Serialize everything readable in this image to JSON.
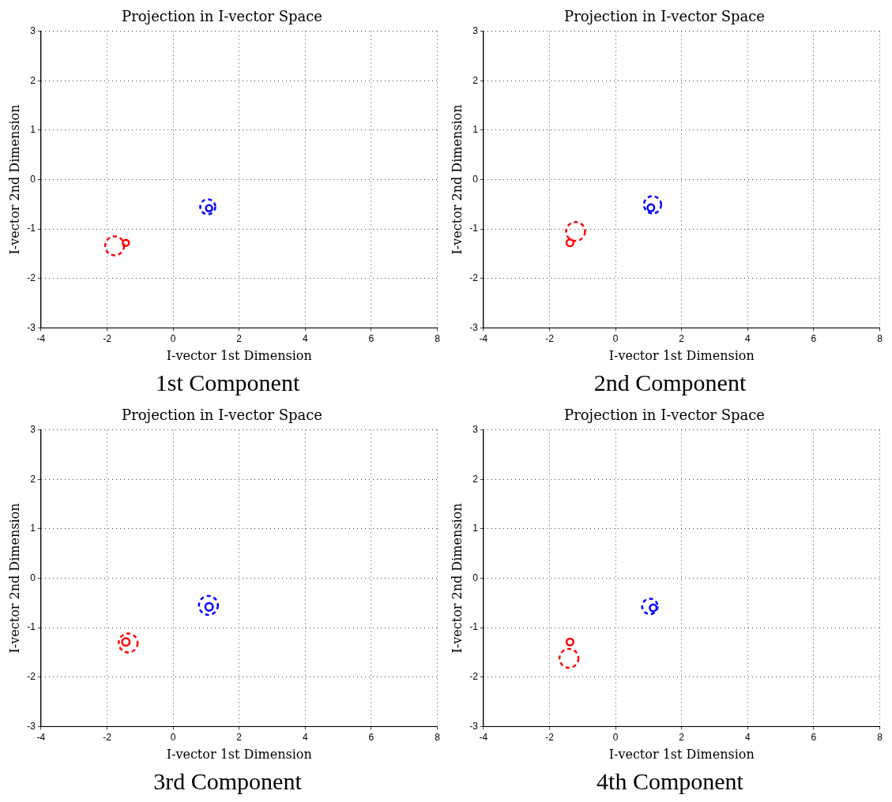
{
  "chart_data": [
    {
      "type": "bubble",
      "title": "Projection in I-vector Space",
      "xlabel": "I-vector 1st Dimension",
      "ylabel": "I-vector 2nd Dimension",
      "annotations": [
        "1st Component"
      ],
      "xlim": [
        -4,
        8
      ],
      "ylim": [
        -3,
        3
      ],
      "xticks": [
        -4,
        -2,
        0,
        2,
        4,
        6,
        8
      ],
      "yticks": [
        -3,
        -2,
        -1,
        0,
        1,
        2,
        3
      ],
      "grid": true,
      "series": [
        {
          "color": "#0000ff",
          "line_style": "solid",
          "x": [
            1.09
          ],
          "values": [
            -0.58
          ],
          "sizes": [
            0.11
          ]
        },
        {
          "color": "#0000ff",
          "line_style": "dashed",
          "x": [
            1.05
          ],
          "values": [
            -0.55
          ],
          "sizes": [
            0.63
          ]
        },
        {
          "color": "#ff0000",
          "line_style": "solid",
          "x": [
            -1.43
          ],
          "values": [
            -1.28
          ],
          "sizes": [
            0.11
          ]
        },
        {
          "color": "#ff0000",
          "line_style": "dashed",
          "x": [
            -1.77
          ],
          "values": [
            -1.34
          ],
          "sizes": [
            1
          ]
        }
      ]
    },
    {
      "type": "bubble",
      "title": "Projection in I-vector Space",
      "xlabel": "I-vector 1st Dimension",
      "ylabel": "I-vector 2nd Dimension",
      "annotations": [
        "2nd Component"
      ],
      "xlim": [
        -4,
        8
      ],
      "ylim": [
        -3,
        3
      ],
      "xticks": [
        -4,
        -2,
        0,
        2,
        4,
        6,
        8
      ],
      "yticks": [
        -3,
        -2,
        -1,
        0,
        1,
        2,
        3
      ],
      "grid": true,
      "series": [
        {
          "color": "#0000ff",
          "line_style": "solid",
          "x": [
            1.07
          ],
          "values": [
            -0.57
          ],
          "sizes": [
            0.13
          ]
        },
        {
          "color": "#0000ff",
          "line_style": "dashed",
          "x": [
            1.12
          ],
          "values": [
            -0.51
          ],
          "sizes": [
            0.83
          ]
        },
        {
          "color": "#ff0000",
          "line_style": "solid",
          "x": [
            -1.38
          ],
          "values": [
            -1.28
          ],
          "sizes": [
            0.13
          ]
        },
        {
          "color": "#ff0000",
          "line_style": "dashed",
          "x": [
            -1.21
          ],
          "values": [
            -1.05
          ],
          "sizes": [
            1
          ]
        }
      ]
    },
    {
      "type": "bubble",
      "title": "Projection in I-vector Space",
      "xlabel": "I-vector 1st Dimension",
      "ylabel": "I-vector 2nd Dimension",
      "annotations": [
        "3rd Component"
      ],
      "xlim": [
        -4,
        8
      ],
      "ylim": [
        -3,
        3
      ],
      "xticks": [
        -4,
        -2,
        0,
        2,
        4,
        6,
        8
      ],
      "yticks": [
        -3,
        -2,
        -1,
        0,
        1,
        2,
        3
      ],
      "grid": true,
      "series": [
        {
          "color": "#0000ff",
          "line_style": "solid",
          "x": [
            1.09
          ],
          "values": [
            -0.58
          ],
          "sizes": [
            0.16
          ]
        },
        {
          "color": "#0000ff",
          "line_style": "dashed",
          "x": [
            1.07
          ],
          "values": [
            -0.55
          ],
          "sizes": [
            1
          ]
        },
        {
          "color": "#ff0000",
          "line_style": "solid",
          "x": [
            -1.43
          ],
          "values": [
            -1.29
          ],
          "sizes": [
            0.16
          ]
        },
        {
          "color": "#ff0000",
          "line_style": "dashed",
          "x": [
            -1.36
          ],
          "values": [
            -1.31
          ],
          "sizes": [
            1
          ]
        }
      ]
    },
    {
      "type": "bubble",
      "title": "Projection in I-vector Space",
      "xlabel": "I-vector 1st Dimension",
      "ylabel": "I-vector 2nd Dimension",
      "annotations": [
        "4th Component"
      ],
      "xlim": [
        -4,
        8
      ],
      "ylim": [
        -3,
        3
      ],
      "xticks": [
        -4,
        -2,
        0,
        2,
        4,
        6,
        8
      ],
      "yticks": [
        -3,
        -2,
        -1,
        0,
        1,
        2,
        3
      ],
      "grid": true,
      "series": [
        {
          "color": "#0000ff",
          "line_style": "solid",
          "x": [
            1.14
          ],
          "values": [
            -0.6
          ],
          "sizes": [
            0.13
          ]
        },
        {
          "color": "#0000ff",
          "line_style": "dashed",
          "x": [
            1.04
          ],
          "values": [
            -0.57
          ],
          "sizes": [
            0.67
          ]
        },
        {
          "color": "#ff0000",
          "line_style": "solid",
          "x": [
            -1.38
          ],
          "values": [
            -1.29
          ],
          "sizes": [
            0.13
          ]
        },
        {
          "color": "#ff0000",
          "line_style": "dashed",
          "x": [
            -1.41
          ],
          "values": [
            -1.62
          ],
          "sizes": [
            1
          ]
        }
      ]
    }
  ]
}
